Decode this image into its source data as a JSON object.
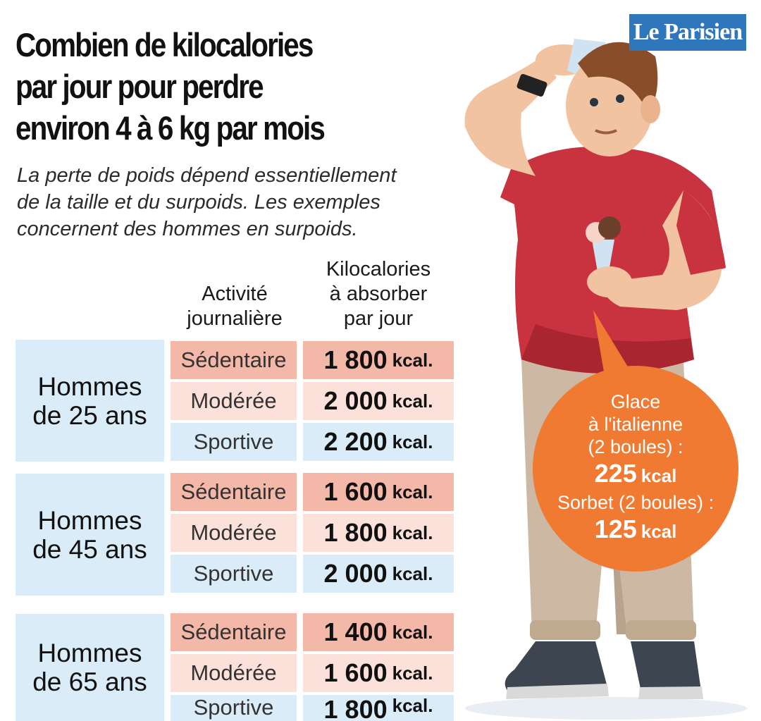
{
  "header": {
    "title_lines": [
      "Combien de kilocalories",
      "par jour pour perdre",
      "environ 4 à 6 kg par mois"
    ],
    "subtitle_lines": [
      "La perte de poids dépend essentiellement",
      "de la taille et du surpoids. Les exemples",
      "concernent des hommes en surpoids."
    ],
    "logo": "Le Parisien"
  },
  "table": {
    "col_activity": [
      "Activité",
      "journalière"
    ],
    "col_kcal": [
      "Kilocalories",
      "à absorber",
      "par jour"
    ],
    "unit": "kcal.",
    "groups": [
      {
        "label_lines": [
          "Hommes",
          "de 25 ans"
        ],
        "rows": [
          {
            "activity": "Sédentaire",
            "value": "1 800"
          },
          {
            "activity": "Modérée",
            "value": "2 000"
          },
          {
            "activity": "Sportive",
            "value": "2 200"
          }
        ]
      },
      {
        "label_lines": [
          "Hommes",
          "de 45 ans"
        ],
        "rows": [
          {
            "activity": "Sédentaire",
            "value": "1 600"
          },
          {
            "activity": "Modérée",
            "value": "1 800"
          },
          {
            "activity": "Sportive",
            "value": "2 000"
          }
        ]
      },
      {
        "label_lines": [
          "Hommes",
          "de 65 ans"
        ],
        "rows": [
          {
            "activity": "Sédentaire",
            "value": "1 400"
          },
          {
            "activity": "Modérée",
            "value": "1 600"
          },
          {
            "activity": "Sportive",
            "value": "1 800"
          }
        ]
      }
    ]
  },
  "bubble": {
    "line1": "Glace",
    "line2": "à l'italienne",
    "line3": "(2 boules) :",
    "glace_value": "225",
    "glace_unit": "kcal",
    "line4": "Sorbet (2 boules) :",
    "sorbet_value": "125",
    "sorbet_unit": "kcal"
  },
  "colors": {
    "sedentaire": "#f4b8a9",
    "moderee": "#fbe1da",
    "sportive": "#daecf8",
    "bubble": "#f07a32",
    "shirt": "#c8333f",
    "logo": "#2f77bd"
  }
}
